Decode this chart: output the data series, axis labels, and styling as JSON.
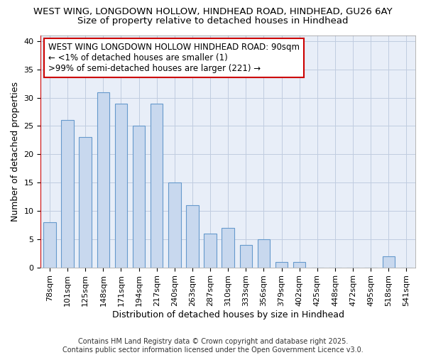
{
  "title1": "WEST WING, LONGDOWN HOLLOW, HINDHEAD ROAD, HINDHEAD, GU26 6AY",
  "title2": "Size of property relative to detached houses in Hindhead",
  "xlabel": "Distribution of detached houses by size in Hindhead",
  "ylabel": "Number of detached properties",
  "categories": [
    "78sqm",
    "101sqm",
    "125sqm",
    "148sqm",
    "171sqm",
    "194sqm",
    "217sqm",
    "240sqm",
    "263sqm",
    "287sqm",
    "310sqm",
    "333sqm",
    "356sqm",
    "379sqm",
    "402sqm",
    "425sqm",
    "448sqm",
    "472sqm",
    "495sqm",
    "518sqm",
    "541sqm"
  ],
  "values": [
    8,
    26,
    23,
    31,
    29,
    25,
    29,
    15,
    11,
    6,
    7,
    4,
    5,
    1,
    1,
    0,
    0,
    0,
    0,
    2,
    0
  ],
  "bar_color": "#c8d8ee",
  "bar_edge_color": "#6699cc",
  "highlight_line_color": "#cc0000",
  "annotation_line1": "WEST WING LONGDOWN HOLLOW HINDHEAD ROAD: 90sqm",
  "annotation_line2": "← <1% of detached houses are smaller (1)",
  "annotation_line3": ">99% of semi-detached houses are larger (221) →",
  "annotation_box_color": "#ffffff",
  "annotation_box_edge_color": "#cc0000",
  "ylim": [
    0,
    41
  ],
  "yticks": [
    0,
    5,
    10,
    15,
    20,
    25,
    30,
    35,
    40
  ],
  "footer": "Contains HM Land Registry data © Crown copyright and database right 2025.\nContains public sector information licensed under the Open Government Licence v3.0.",
  "bg_color": "#ffffff",
  "plot_bg_color": "#e8eef8",
  "title_fontsize": 9.5,
  "subtitle_fontsize": 9.5,
  "axis_label_fontsize": 9,
  "tick_fontsize": 8,
  "footer_fontsize": 7,
  "annotation_fontsize": 8.5
}
